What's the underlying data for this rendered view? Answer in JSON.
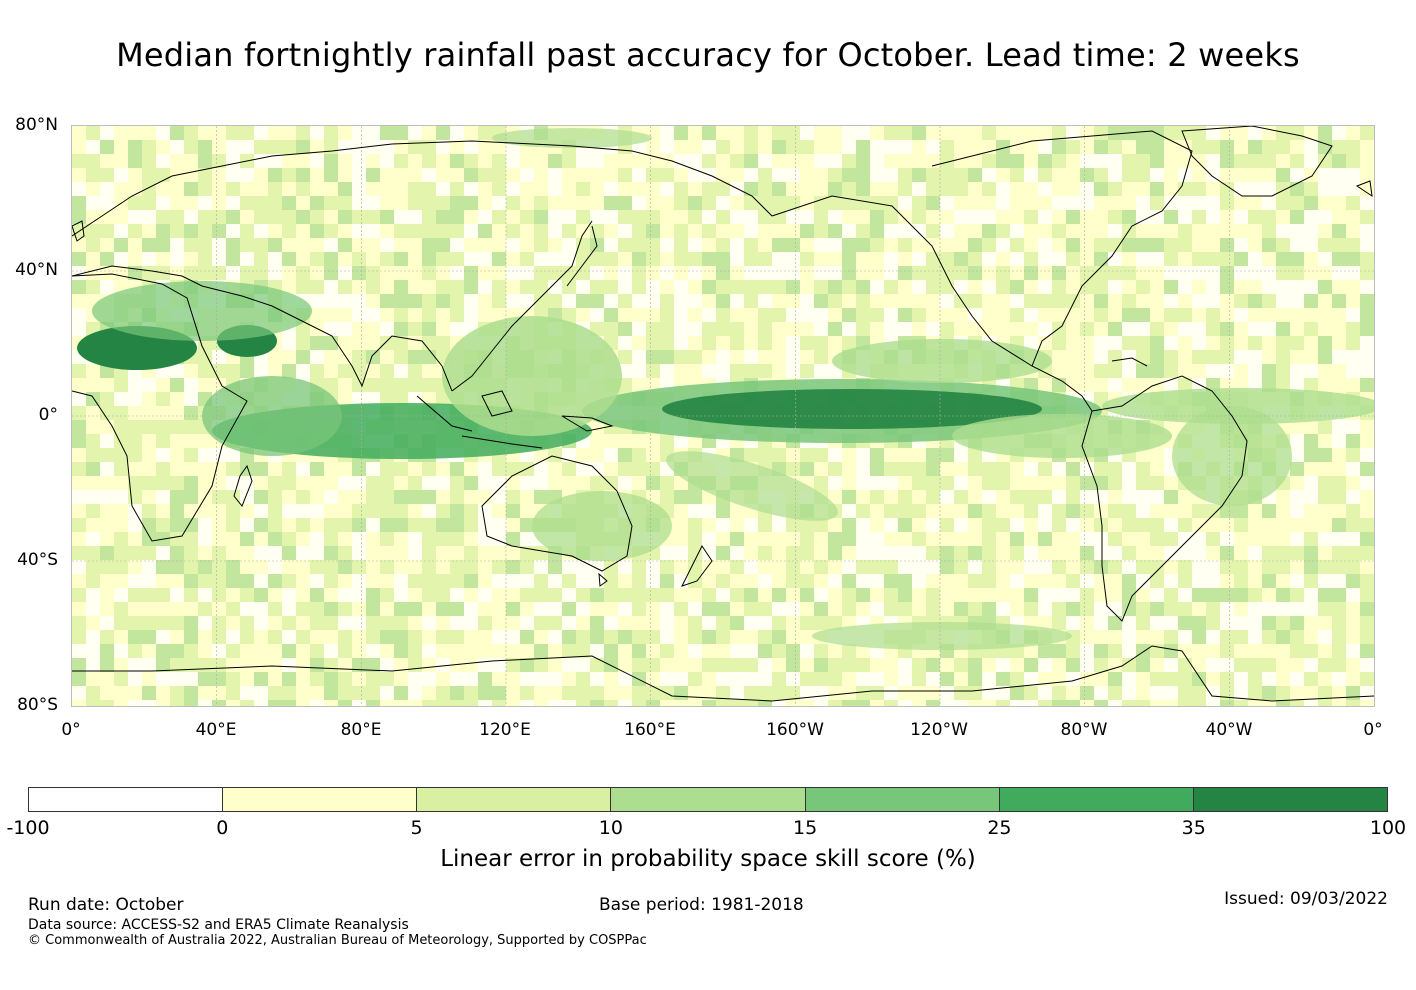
{
  "title": "Median fortnightly rainfall past accuracy for October. Lead time: 2 weeks",
  "map": {
    "lat_labels": [
      "80°N",
      "40°N",
      "0°",
      "40°S",
      "80°S"
    ],
    "lon_labels": [
      "0°",
      "40°E",
      "80°E",
      "120°E",
      "160°E",
      "160°W",
      "120°W",
      "80°W",
      "40°W",
      "0°"
    ],
    "projection": "equirectangular, centred on 180°",
    "coastline_color": "#000000",
    "grid_color": "#aaaaaa"
  },
  "colorbar": {
    "tick_labels": [
      "-100",
      "0",
      "5",
      "10",
      "15",
      "25",
      "35",
      "100"
    ],
    "colors": [
      "#ffffff",
      "#ffffcc",
      "#d9f0a3",
      "#addd8e",
      "#78c679",
      "#41ab5d",
      "#238443"
    ],
    "label": "Linear error in probability space skill score (%)"
  },
  "footer": {
    "run_date": "Run date: October",
    "base_period": "Base period: 1981-2018",
    "issued": "Issued: 09/03/2022",
    "data_source": "Data source: ACCESS-S2 and ERA5 Climate Reanalysis",
    "copyright": "© Commonwealth of Australia 2022, Australian Bureau of Meteorology, Supported by COSPPac"
  }
}
